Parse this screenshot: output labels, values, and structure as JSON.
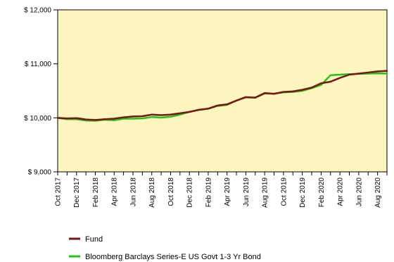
{
  "chart_data": {
    "type": "line",
    "background_color": "#fdf5c0",
    "grid": false,
    "legend_position": "bottom-left",
    "ylim": [
      9000,
      12000
    ],
    "y_ticks": [
      {
        "value": 9000,
        "label": "$ 9,000"
      },
      {
        "value": 10000,
        "label": "$ 10,000"
      },
      {
        "value": 11000,
        "label": "$ 11,000"
      },
      {
        "value": 12000,
        "label": "$ 12,000"
      }
    ],
    "x_ticks": [
      "Oct 2017",
      "Dec 2017",
      "Feb 2018",
      "Apr 2018",
      "Jun 2018",
      "Aug 2018",
      "Oct 2018",
      "Dec 2018",
      "Feb 2019",
      "Apr 2019",
      "Jun 2019",
      "Aug 2019",
      "Oct 2019",
      "Dec 2019",
      "Feb 2020",
      "Apr 2020",
      "Jun 2020",
      "Aug 2020"
    ],
    "x": [
      "2017-10",
      "2017-11",
      "2017-12",
      "2018-01",
      "2018-02",
      "2018-03",
      "2018-04",
      "2018-05",
      "2018-06",
      "2018-07",
      "2018-08",
      "2018-09",
      "2018-10",
      "2018-11",
      "2018-12",
      "2019-01",
      "2019-02",
      "2019-03",
      "2019-04",
      "2019-05",
      "2019-06",
      "2019-07",
      "2019-08",
      "2019-09",
      "2019-10",
      "2019-11",
      "2019-12",
      "2020-01",
      "2020-02",
      "2020-03",
      "2020-04",
      "2020-05",
      "2020-06",
      "2020-07",
      "2020-08",
      "2020-09"
    ],
    "series": [
      {
        "name": "Fund",
        "color": "#7b1414",
        "values": [
          10000,
          9990,
          9995,
          9970,
          9960,
          9975,
          9985,
          10010,
          10025,
          10030,
          10060,
          10050,
          10060,
          10085,
          10110,
          10150,
          10170,
          10230,
          10250,
          10320,
          10385,
          10375,
          10460,
          10445,
          10480,
          10490,
          10520,
          10560,
          10640,
          10670,
          10740,
          10800,
          10820,
          10840,
          10860,
          10870
        ]
      },
      {
        "name": "Bloomberg Barclays Series-E US Govt 1-3 Yr Bond",
        "color": "#22c41a",
        "values": [
          10000,
          9975,
          9975,
          9950,
          9945,
          9965,
          9955,
          9985,
          9985,
          9990,
          10015,
          10005,
          10020,
          10060,
          10110,
          10145,
          10170,
          10220,
          10240,
          10320,
          10380,
          10375,
          10450,
          10450,
          10470,
          10480,
          10500,
          10550,
          10610,
          10790,
          10800,
          10810,
          10815,
          10820,
          10825,
          10820
        ]
      }
    ]
  }
}
